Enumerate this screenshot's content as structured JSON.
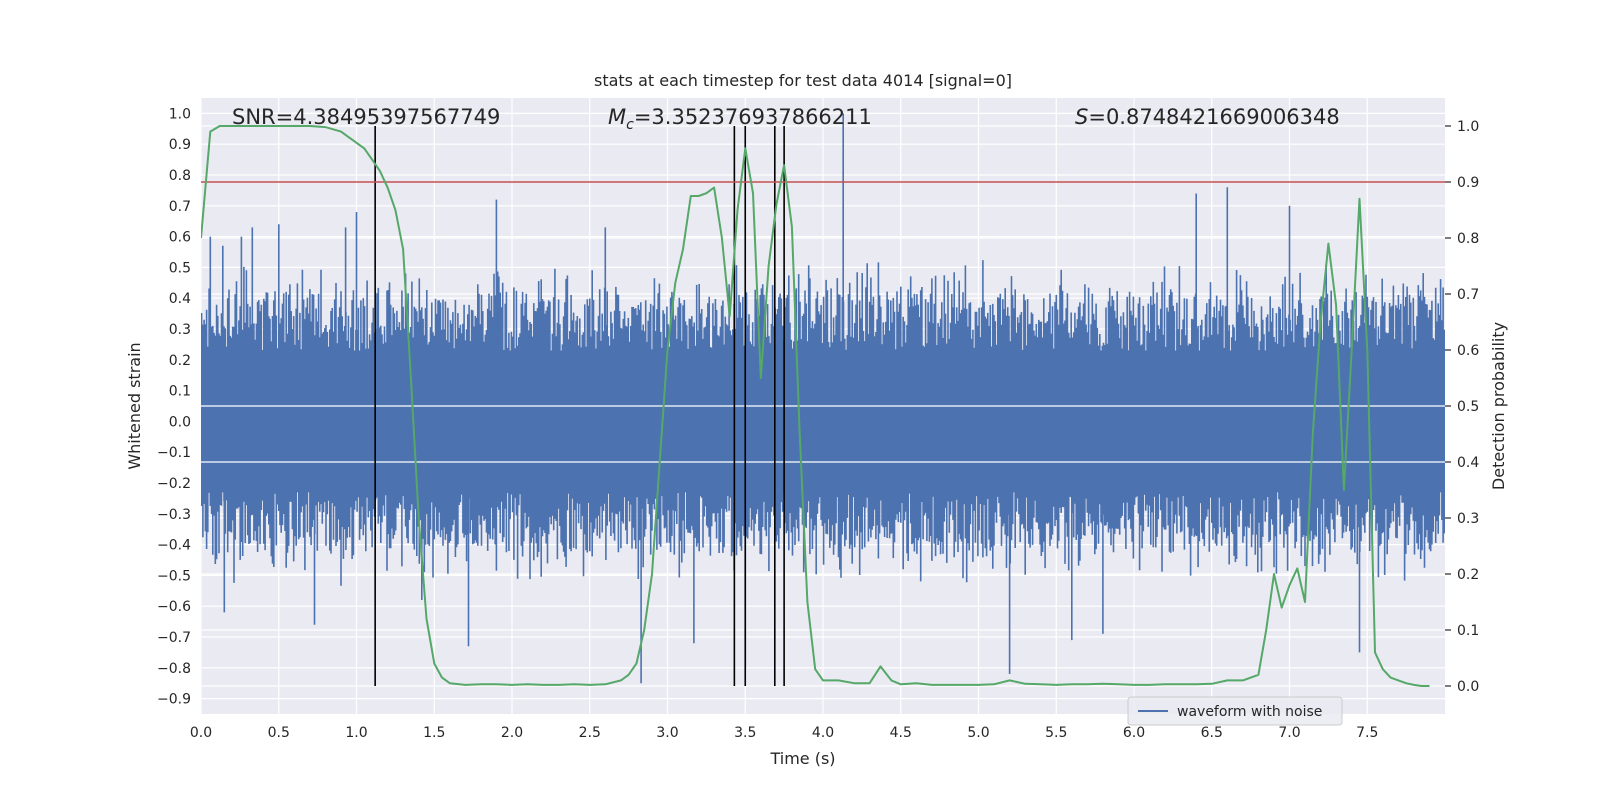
{
  "chart_data": {
    "type": "line",
    "title": "stats at each timestep for test data 4014 [signal=0]",
    "xlabel": "Time (s)",
    "ylabel_left": "Whitened strain",
    "ylabel_right": "Detection probability",
    "xlim": [
      0.0,
      8.0
    ],
    "ylim_left": [
      -0.95,
      1.05
    ],
    "ylim_right": [
      -0.05,
      1.05
    ],
    "x_ticks": [
      "0.0",
      "0.5",
      "1.0",
      "1.5",
      "2.0",
      "2.5",
      "3.0",
      "3.5",
      "4.0",
      "4.5",
      "5.0",
      "5.5",
      "6.0",
      "6.5",
      "7.0",
      "7.5"
    ],
    "y_left_ticks": [
      "1.0",
      "0.9",
      "0.8",
      "0.7",
      "0.6",
      "0.5",
      "0.4",
      "0.3",
      "0.2",
      "0.1",
      "0.0",
      "-0.1",
      "-0.2",
      "-0.3",
      "-0.4",
      "-0.5",
      "-0.6",
      "-0.7",
      "-0.8",
      "-0.9"
    ],
    "y_right_ticks": [
      "1.0",
      "0.9",
      "0.8",
      "0.7",
      "0.6",
      "0.5",
      "0.4",
      "0.3",
      "0.2",
      "0.1",
      "0.0"
    ],
    "grid": true,
    "legend": {
      "placement": "bottom-right",
      "entries": [
        {
          "name": "waveform with noise",
          "color": "#4c72b0"
        }
      ]
    },
    "annotations": {
      "snr": "SNR=4.38495397567749",
      "mc_symbol": "M",
      "mc_sub": "c",
      "mc_value": "=3.352376937866211",
      "s_symbol": "S",
      "s_value": "=0.8748421669006348"
    },
    "series": [
      {
        "name": "waveform with noise",
        "axis": "left",
        "color": "#4c72b0",
        "envelope_typical": 0.32,
        "peaks": [
          {
            "t": 0.06,
            "v": 0.6
          },
          {
            "t": 0.14,
            "v": 0.57
          },
          {
            "t": 0.26,
            "v": 0.6
          },
          {
            "t": 0.33,
            "v": 0.63
          },
          {
            "t": 0.5,
            "v": 0.64
          },
          {
            "t": 0.93,
            "v": 0.63
          },
          {
            "t": 1.0,
            "v": 0.68
          },
          {
            "t": 1.9,
            "v": 0.72
          },
          {
            "t": 2.6,
            "v": 0.63
          },
          {
            "t": 4.13,
            "v": 1.0
          },
          {
            "t": 6.6,
            "v": 0.76
          },
          {
            "t": 6.4,
            "v": 0.74
          },
          {
            "t": 7.0,
            "v": 0.7
          },
          {
            "t": 0.15,
            "v": -0.62
          },
          {
            "t": 0.73,
            "v": -0.66
          },
          {
            "t": 1.42,
            "v": -0.58
          },
          {
            "t": 1.72,
            "v": -0.73
          },
          {
            "t": 2.83,
            "v": -0.85
          },
          {
            "t": 3.17,
            "v": -0.72
          },
          {
            "t": 3.5,
            "v": -0.8
          },
          {
            "t": 5.2,
            "v": -0.82
          },
          {
            "t": 5.6,
            "v": -0.71
          },
          {
            "t": 5.8,
            "v": -0.69
          },
          {
            "t": 7.45,
            "v": -0.75
          }
        ]
      },
      {
        "name": "detection probability",
        "axis": "right",
        "color": "#55a868",
        "x": [
          0.0,
          0.06,
          0.12,
          0.2,
          0.3,
          0.4,
          0.5,
          0.6,
          0.7,
          0.8,
          0.9,
          0.95,
          1.05,
          1.1,
          1.15,
          1.2,
          1.25,
          1.3,
          1.35,
          1.4,
          1.45,
          1.5,
          1.55,
          1.6,
          1.7,
          1.8,
          1.9,
          2.0,
          2.1,
          2.2,
          2.3,
          2.4,
          2.5,
          2.6,
          2.7,
          2.75,
          2.8,
          2.85,
          2.9,
          2.95,
          3.0,
          3.05,
          3.1,
          3.15,
          3.2,
          3.25,
          3.3,
          3.35,
          3.4,
          3.45,
          3.5,
          3.55,
          3.6,
          3.65,
          3.7,
          3.75,
          3.8,
          3.85,
          3.9,
          3.95,
          4.0,
          4.1,
          4.2,
          4.3,
          4.37,
          4.44,
          4.5,
          4.6,
          4.7,
          4.8,
          4.9,
          5.0,
          5.1,
          5.2,
          5.3,
          5.4,
          5.5,
          5.6,
          5.7,
          5.8,
          5.9,
          6.0,
          6.1,
          6.2,
          6.3,
          6.4,
          6.5,
          6.6,
          6.7,
          6.8,
          6.85,
          6.9,
          6.95,
          7.0,
          7.05,
          7.1,
          7.15,
          7.2,
          7.25,
          7.3,
          7.35,
          7.4,
          7.45,
          7.5,
          7.55,
          7.6,
          7.65,
          7.7,
          7.75,
          7.8,
          7.85,
          7.9
        ],
        "values": [
          0.8,
          0.99,
          1.0,
          1.0,
          1.0,
          1.0,
          1.0,
          1.0,
          1.0,
          0.998,
          0.99,
          0.98,
          0.96,
          0.94,
          0.92,
          0.89,
          0.85,
          0.78,
          0.55,
          0.3,
          0.12,
          0.04,
          0.015,
          0.005,
          0.002,
          0.003,
          0.003,
          0.002,
          0.003,
          0.002,
          0.002,
          0.003,
          0.002,
          0.003,
          0.01,
          0.02,
          0.04,
          0.1,
          0.2,
          0.4,
          0.6,
          0.72,
          0.78,
          0.875,
          0.875,
          0.88,
          0.89,
          0.8,
          0.66,
          0.85,
          0.96,
          0.88,
          0.55,
          0.75,
          0.86,
          0.93,
          0.82,
          0.45,
          0.15,
          0.03,
          0.01,
          0.01,
          0.005,
          0.005,
          0.035,
          0.01,
          0.003,
          0.005,
          0.002,
          0.002,
          0.002,
          0.002,
          0.003,
          0.01,
          0.004,
          0.003,
          0.002,
          0.003,
          0.003,
          0.004,
          0.003,
          0.002,
          0.002,
          0.003,
          0.003,
          0.003,
          0.004,
          0.01,
          0.01,
          0.02,
          0.1,
          0.2,
          0.14,
          0.18,
          0.21,
          0.15,
          0.45,
          0.65,
          0.79,
          0.68,
          0.35,
          0.6,
          0.87,
          0.6,
          0.06,
          0.03,
          0.015,
          0.01,
          0.005,
          0.002,
          0.0,
          0.0
        ]
      }
    ],
    "threshold_line": {
      "axis": "right",
      "value": 0.9,
      "color": "#c44e52"
    },
    "vertical_lines": [
      1.12,
      3.43,
      3.5,
      3.69,
      3.75
    ]
  }
}
